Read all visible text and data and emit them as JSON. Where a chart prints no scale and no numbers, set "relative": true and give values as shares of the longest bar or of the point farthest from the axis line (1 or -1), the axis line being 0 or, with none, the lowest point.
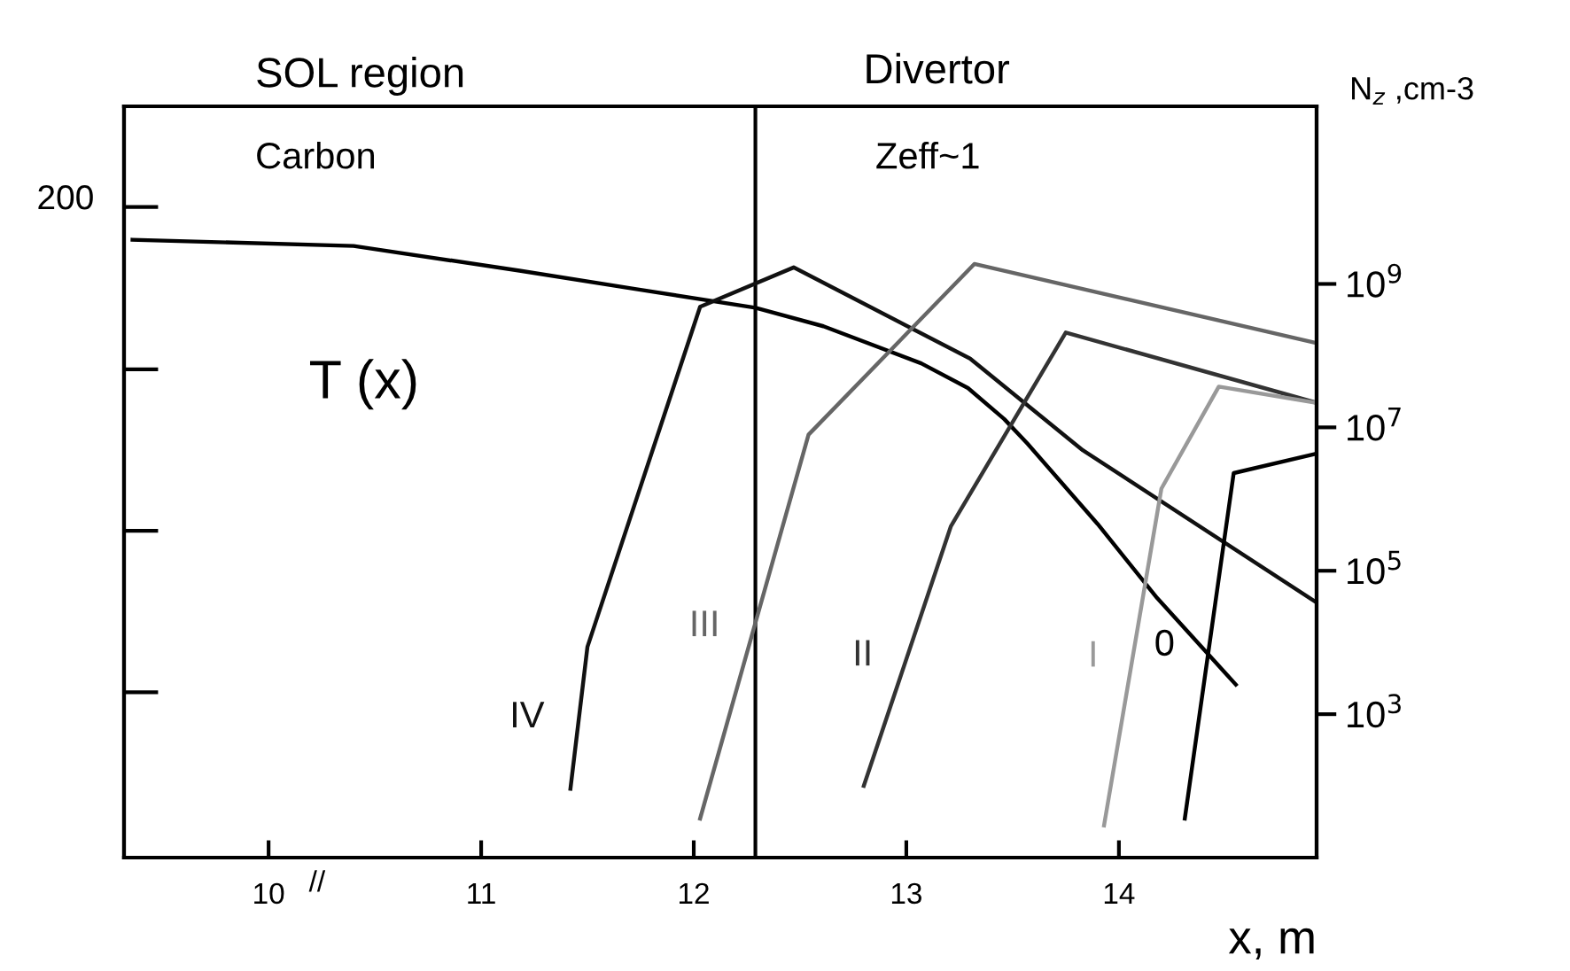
{
  "chart_data": [
    {
      "type": "line",
      "relative": true,
      "xlim": [
        9.32,
        14.93
      ],
      "annotations": [
        "T (x)",
        "200"
      ],
      "grid": false,
      "legend": false,
      "marker": "none",
      "line_style": "solid",
      "series": [
        {
          "color": "#000000",
          "x": [
            9.36,
            10.4,
            11.18,
            11.73,
            12.29,
            12.61,
            13.07,
            13.29,
            13.46,
            13.57,
            13.9,
            14.18,
            14.55
          ],
          "values": [
            1.0,
            0.99,
            0.95,
            0.92,
            0.89,
            0.86,
            0.8,
            0.76,
            0.71,
            0.67,
            0.54,
            0.42,
            0.28
          ]
        }
      ]
    },
    {
      "type": "line",
      "xlabel": "x, m",
      "y2label": "N$_{z}$ ,cm-3",
      "annotations": [
        "SOL region",
        "Divertor",
        "Carbon",
        "Zeff~1",
        "//"
      ],
      "xlim": [
        9.32,
        14.93
      ],
      "xticks": [
        10,
        11,
        12,
        13,
        14
      ],
      "y2lim": [
        10,
        300000000000.0
      ],
      "log": "y2",
      "y2ticks": [
        {
          "value": 1000,
          "label": "10$^{3}$"
        },
        {
          "value": 100000,
          "label": "10$^{5}$"
        },
        {
          "value": 10000000,
          "label": "10$^{7}$"
        },
        {
          "value": 1000000000,
          "label": "10$^{9}$"
        }
      ],
      "ref_lines": [
        {
          "axis": "x",
          "value": 12.29,
          "color": "#000000"
        }
      ],
      "grid": false,
      "legend": false,
      "marker": "none",
      "line_style": "solid",
      "series": [
        {
          "name": "IV",
          "axis": "y2",
          "color": "#111111",
          "x": [
            11.42,
            11.5,
            12.03,
            12.47,
            13.3,
            13.83,
            14.93
          ],
          "values": [
            91,
            8700,
            480000000,
            1700000000,
            91000000,
            4800000,
            36000
          ]
        },
        {
          "name": "III",
          "axis": "y2",
          "color": "#666666",
          "x": [
            12.03,
            12.54,
            13.32,
            14.93
          ],
          "values": [
            35,
            7900000,
            1900000000,
            150000000
          ]
        },
        {
          "name": "II",
          "axis": "y2",
          "color": "#333333",
          "x": [
            12.8,
            13.21,
            13.75,
            14.93
          ],
          "values": [
            100,
            420000,
            210000000,
            22000000
          ]
        },
        {
          "name": "I",
          "axis": "y2",
          "color": "#999999",
          "x": [
            13.93,
            14.2,
            14.47,
            14.93
          ],
          "values": [
            28,
            1400000,
            37000000,
            22000000
          ]
        },
        {
          "name": "0",
          "axis": "y2",
          "color": "#000000",
          "x": [
            14.31,
            14.54,
            14.93
          ],
          "values": [
            35,
            2300000,
            4300000
          ]
        }
      ]
    }
  ]
}
